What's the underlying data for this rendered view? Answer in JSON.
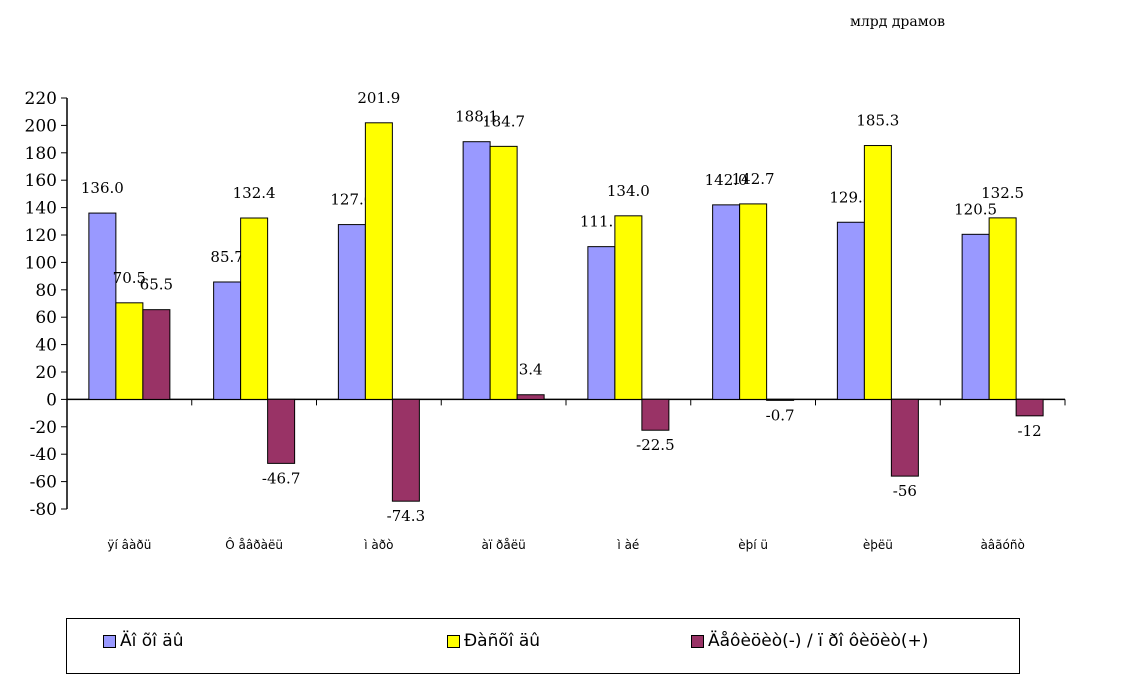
{
  "unit_label": "млрд  драмов",
  "colors": {
    "series1": "#9999ff",
    "series2": "#ffff00",
    "series3": "#993366",
    "axis": "#000000"
  },
  "chart_data": {
    "type": "bar",
    "categories": [
      "ÿí âàðü",
      "Ô åâðàëü",
      "ì àðò",
      "àï ðåëü",
      "ì àé",
      "èþí ü",
      "èþëü",
      "àâãóñò"
    ],
    "series": [
      {
        "name": "Äî õî äû",
        "values": [
          136.0,
          85.7,
          127.6,
          188.1,
          111.5,
          142.0,
          129.3,
          120.5
        ],
        "labels": [
          "136.0",
          "85.7",
          "127.6",
          "188.1",
          "111.5",
          "142.0",
          "129.3",
          "120.5"
        ]
      },
      {
        "name": "Ðàñõî äû",
        "values": [
          70.5,
          132.4,
          201.9,
          184.7,
          134.0,
          142.7,
          185.3,
          132.5
        ],
        "labels": [
          "70.5",
          "132.4",
          "201.9",
          "184.7",
          "134.0",
          "142.7",
          "185.3",
          "132.5"
        ]
      },
      {
        "name": "Äåôèöèò(-) / ï ðî ôèöèò(+)",
        "values": [
          65.5,
          -46.7,
          -74.3,
          3.4,
          -22.5,
          -0.7,
          -56,
          -12
        ],
        "labels": [
          "65.5",
          "-46.7",
          "-74.3",
          "3.4",
          "-22.5",
          "-0.7",
          "-56",
          "-12"
        ]
      }
    ],
    "ylim": [
      -80,
      220
    ],
    "yticks": [
      -80,
      -60,
      -40,
      -20,
      0,
      20,
      40,
      60,
      80,
      100,
      120,
      140,
      160,
      180,
      200,
      220
    ],
    "grid": false,
    "legend_position": "bottom"
  }
}
